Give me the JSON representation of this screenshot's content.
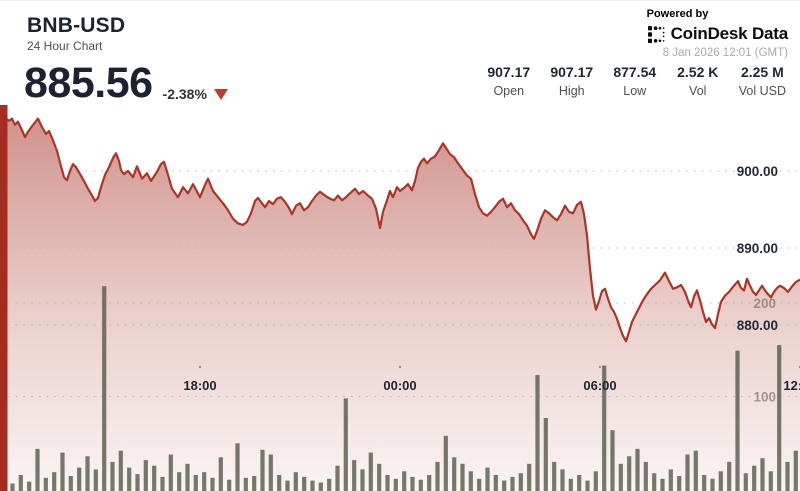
{
  "header": {
    "symbol": "BNB-USD",
    "subtitle": "24 Hour Chart",
    "price": "885.56",
    "change": "-2.38%",
    "powered_by": "Powered by",
    "brand": "CoinDesk Data",
    "timestamp": "8 Jan 2026 12:01 (GMT)",
    "stats": [
      {
        "value": "907.17",
        "label": "Open"
      },
      {
        "value": "907.17",
        "label": "High"
      },
      {
        "value": "877.54",
        "label": "Low"
      },
      {
        "value": "2.52 K",
        "label": "Vol"
      },
      {
        "value": "2.25 M",
        "label": "Vol USD"
      }
    ]
  },
  "colors": {
    "line": "#ad3426",
    "area_rgb": "163,44,29",
    "strip": "#a42d1f",
    "volume_bar": "#5d6154",
    "grid": "#b8b0ac",
    "tick_dot": "#9a948f",
    "triangle": "#c23a28"
  },
  "chart_data": {
    "type": "area",
    "title": "BNB-USD 24 Hour Chart",
    "x_axis": {
      "range_hours": [
        0,
        24
      ],
      "ticks": [
        {
          "t": 6,
          "label": "18:00"
        },
        {
          "t": 12,
          "label": "00:00"
        },
        {
          "t": 18,
          "label": "06:00"
        },
        {
          "t": 24,
          "label": "12:00"
        }
      ]
    },
    "price_axis": {
      "ticks": [
        900,
        890,
        880
      ],
      "tick_format": "2dp"
    },
    "volume_axis": {
      "ticks": [
        200,
        100
      ]
    },
    "legend": "none",
    "grid": "dotted-horizontal",
    "price_series": [
      [
        0,
        907.2
      ],
      [
        0.15,
        906.9
      ],
      [
        0.27,
        906.5
      ],
      [
        0.36,
        906.8
      ],
      [
        0.45,
        906
      ],
      [
        0.54,
        906.4
      ],
      [
        0.66,
        905.3
      ],
      [
        0.75,
        904.4
      ],
      [
        0.84,
        905.1
      ],
      [
        0.96,
        905.8
      ],
      [
        1.14,
        906.8
      ],
      [
        1.26,
        905.7
      ],
      [
        1.38,
        904.8
      ],
      [
        1.47,
        905.2
      ],
      [
        1.56,
        904.3
      ],
      [
        1.71,
        902.6
      ],
      [
        1.83,
        900.6
      ],
      [
        1.92,
        899.2
      ],
      [
        2.01,
        898.8
      ],
      [
        2.1,
        900
      ],
      [
        2.19,
        900.9
      ],
      [
        2.28,
        900.5
      ],
      [
        2.4,
        899.6
      ],
      [
        2.52,
        898.7
      ],
      [
        2.64,
        897.7
      ],
      [
        2.76,
        896.8
      ],
      [
        2.85,
        896.1
      ],
      [
        2.94,
        896.5
      ],
      [
        3.03,
        897.9
      ],
      [
        3.15,
        899.5
      ],
      [
        3.27,
        900.5
      ],
      [
        3.39,
        901.7
      ],
      [
        3.48,
        902.3
      ],
      [
        3.57,
        901.3
      ],
      [
        3.63,
        900.1
      ],
      [
        3.72,
        899.6
      ],
      [
        3.84,
        900
      ],
      [
        3.99,
        899.2
      ],
      [
        4.11,
        900.6
      ],
      [
        4.26,
        899
      ],
      [
        4.41,
        899.7
      ],
      [
        4.53,
        898.7
      ],
      [
        4.71,
        899.9
      ],
      [
        4.83,
        900.9
      ],
      [
        4.92,
        901.2
      ],
      [
        5.04,
        899.5
      ],
      [
        5.16,
        897.7
      ],
      [
        5.34,
        896.6
      ],
      [
        5.49,
        897.9
      ],
      [
        5.64,
        897.1
      ],
      [
        5.79,
        898.3
      ],
      [
        6,
        896.6
      ],
      [
        6.15,
        898.2
      ],
      [
        6.24,
        899
      ],
      [
        6.39,
        897.4
      ],
      [
        6.54,
        896.6
      ],
      [
        6.69,
        895.8
      ],
      [
        6.84,
        894.9
      ],
      [
        6.99,
        893.8
      ],
      [
        7.14,
        893.2
      ],
      [
        7.29,
        893
      ],
      [
        7.41,
        893.4
      ],
      [
        7.53,
        894.5
      ],
      [
        7.65,
        896.1
      ],
      [
        7.74,
        896.5
      ],
      [
        7.86,
        895.8
      ],
      [
        7.95,
        895.3
      ],
      [
        8.07,
        896.1
      ],
      [
        8.19,
        895.7
      ],
      [
        8.31,
        896.4
      ],
      [
        8.43,
        896.6
      ],
      [
        8.55,
        896
      ],
      [
        8.67,
        895.2
      ],
      [
        8.76,
        894.4
      ],
      [
        8.88,
        895.5
      ],
      [
        9,
        895.8
      ],
      [
        9.12,
        894.9
      ],
      [
        9.24,
        895.3
      ],
      [
        9.36,
        896.1
      ],
      [
        9.48,
        896.8
      ],
      [
        9.6,
        897.3
      ],
      [
        9.75,
        896.8
      ],
      [
        9.9,
        896.4
      ],
      [
        10.02,
        896.2
      ],
      [
        10.14,
        896.8
      ],
      [
        10.26,
        896.2
      ],
      [
        10.38,
        896.6
      ],
      [
        10.5,
        897.1
      ],
      [
        10.65,
        897.7
      ],
      [
        10.77,
        897
      ],
      [
        10.89,
        897.4
      ],
      [
        11.04,
        896.8
      ],
      [
        11.16,
        896.4
      ],
      [
        11.28,
        895.1
      ],
      [
        11.4,
        892.6
      ],
      [
        11.49,
        894.7
      ],
      [
        11.61,
        896.2
      ],
      [
        11.7,
        897.4
      ],
      [
        11.79,
        896.6
      ],
      [
        11.91,
        897.9
      ],
      [
        12,
        897.4
      ],
      [
        12.12,
        897.8
      ],
      [
        12.24,
        898.3
      ],
      [
        12.36,
        897.5
      ],
      [
        12.45,
        898.7
      ],
      [
        12.54,
        900.4
      ],
      [
        12.63,
        901.2
      ],
      [
        12.72,
        901.6
      ],
      [
        12.81,
        901
      ],
      [
        12.93,
        901.6
      ],
      [
        13.05,
        901.9
      ],
      [
        13.17,
        902.7
      ],
      [
        13.29,
        903.6
      ],
      [
        13.38,
        903
      ],
      [
        13.5,
        902.2
      ],
      [
        13.62,
        901.8
      ],
      [
        13.74,
        901
      ],
      [
        13.89,
        900.1
      ],
      [
        14.01,
        899.4
      ],
      [
        14.13,
        899
      ],
      [
        14.25,
        897
      ],
      [
        14.37,
        895.3
      ],
      [
        14.49,
        894.5
      ],
      [
        14.61,
        894.2
      ],
      [
        14.73,
        894.7
      ],
      [
        14.85,
        895.3
      ],
      [
        14.97,
        896
      ],
      [
        15.09,
        896.4
      ],
      [
        15.21,
        895.3
      ],
      [
        15.33,
        895.8
      ],
      [
        15.45,
        894.9
      ],
      [
        15.57,
        894.4
      ],
      [
        15.69,
        893.6
      ],
      [
        15.81,
        892.9
      ],
      [
        15.93,
        891.8
      ],
      [
        16.02,
        891.2
      ],
      [
        16.11,
        892.2
      ],
      [
        16.23,
        893.8
      ],
      [
        16.35,
        894.9
      ],
      [
        16.47,
        894.5
      ],
      [
        16.59,
        894
      ],
      [
        16.71,
        893.6
      ],
      [
        16.83,
        894.4
      ],
      [
        16.95,
        895.5
      ],
      [
        17.07,
        894.7
      ],
      [
        17.19,
        894.5
      ],
      [
        17.31,
        895.6
      ],
      [
        17.43,
        896
      ],
      [
        17.52,
        894.4
      ],
      [
        17.61,
        891.6
      ],
      [
        17.7,
        887.3
      ],
      [
        17.79,
        883.8
      ],
      [
        17.88,
        882
      ],
      [
        17.97,
        883.1
      ],
      [
        18.06,
        884.4
      ],
      [
        18.15,
        884.7
      ],
      [
        18.24,
        883.4
      ],
      [
        18.33,
        882.3
      ],
      [
        18.42,
        881.7
      ],
      [
        18.51,
        880.8
      ],
      [
        18.6,
        879.6
      ],
      [
        18.69,
        878.6
      ],
      [
        18.78,
        877.9
      ],
      [
        18.87,
        879.1
      ],
      [
        18.96,
        880.4
      ],
      [
        19.05,
        881.2
      ],
      [
        19.17,
        882.2
      ],
      [
        19.29,
        883.2
      ],
      [
        19.41,
        884
      ],
      [
        19.53,
        884.7
      ],
      [
        19.65,
        885.2
      ],
      [
        19.8,
        885.8
      ],
      [
        19.95,
        886.8
      ],
      [
        20.07,
        885.7
      ],
      [
        20.19,
        884.7
      ],
      [
        20.31,
        884.9
      ],
      [
        20.43,
        885.2
      ],
      [
        20.55,
        884.3
      ],
      [
        20.64,
        883.2
      ],
      [
        20.73,
        882.3
      ],
      [
        20.82,
        883.7
      ],
      [
        20.91,
        884.5
      ],
      [
        21,
        883.2
      ],
      [
        21.09,
        881.7
      ],
      [
        21.18,
        880.4
      ],
      [
        21.27,
        880.9
      ],
      [
        21.36,
        880.1
      ],
      [
        21.45,
        879.6
      ],
      [
        21.54,
        881.4
      ],
      [
        21.63,
        883
      ],
      [
        21.75,
        883.8
      ],
      [
        21.87,
        884.3
      ],
      [
        22.02,
        885.1
      ],
      [
        22.14,
        885.7
      ],
      [
        22.23,
        884.8
      ],
      [
        22.32,
        884.5
      ],
      [
        22.41,
        886
      ],
      [
        22.5,
        885.1
      ],
      [
        22.59,
        884.3
      ],
      [
        22.68,
        883.9
      ],
      [
        22.77,
        884.5
      ],
      [
        22.86,
        885.1
      ],
      [
        22.95,
        884.5
      ],
      [
        23.04,
        884
      ],
      [
        23.13,
        883.6
      ],
      [
        23.22,
        884.3
      ],
      [
        23.31,
        884.8
      ],
      [
        23.4,
        885.1
      ],
      [
        23.52,
        884.8
      ],
      [
        23.64,
        884.3
      ],
      [
        23.76,
        885
      ],
      [
        23.88,
        885.6
      ],
      [
        24,
        885.9
      ]
    ],
    "volume_series": [
      12,
      7,
      16,
      9,
      44,
      13,
      19,
      40,
      15,
      24,
      36,
      22,
      218,
      30,
      42,
      24,
      17,
      32,
      26,
      14,
      38,
      19,
      28,
      16,
      19,
      13,
      35,
      11,
      50,
      13,
      15,
      43,
      38,
      16,
      10,
      19,
      14,
      10,
      8,
      12,
      26,
      98,
      32,
      22,
      40,
      28,
      16,
      12,
      20,
      14,
      11,
      16,
      30,
      58,
      35,
      28,
      20,
      12,
      24,
      16,
      10,
      14,
      18,
      28,
      123,
      77,
      30,
      22,
      12,
      16,
      10,
      20,
      133,
      64,
      28,
      36,
      44,
      30,
      18,
      12,
      22,
      15,
      38,
      42,
      16,
      12,
      20,
      30,
      149,
      18,
      26,
      34,
      20,
      155,
      30,
      42
    ]
  }
}
